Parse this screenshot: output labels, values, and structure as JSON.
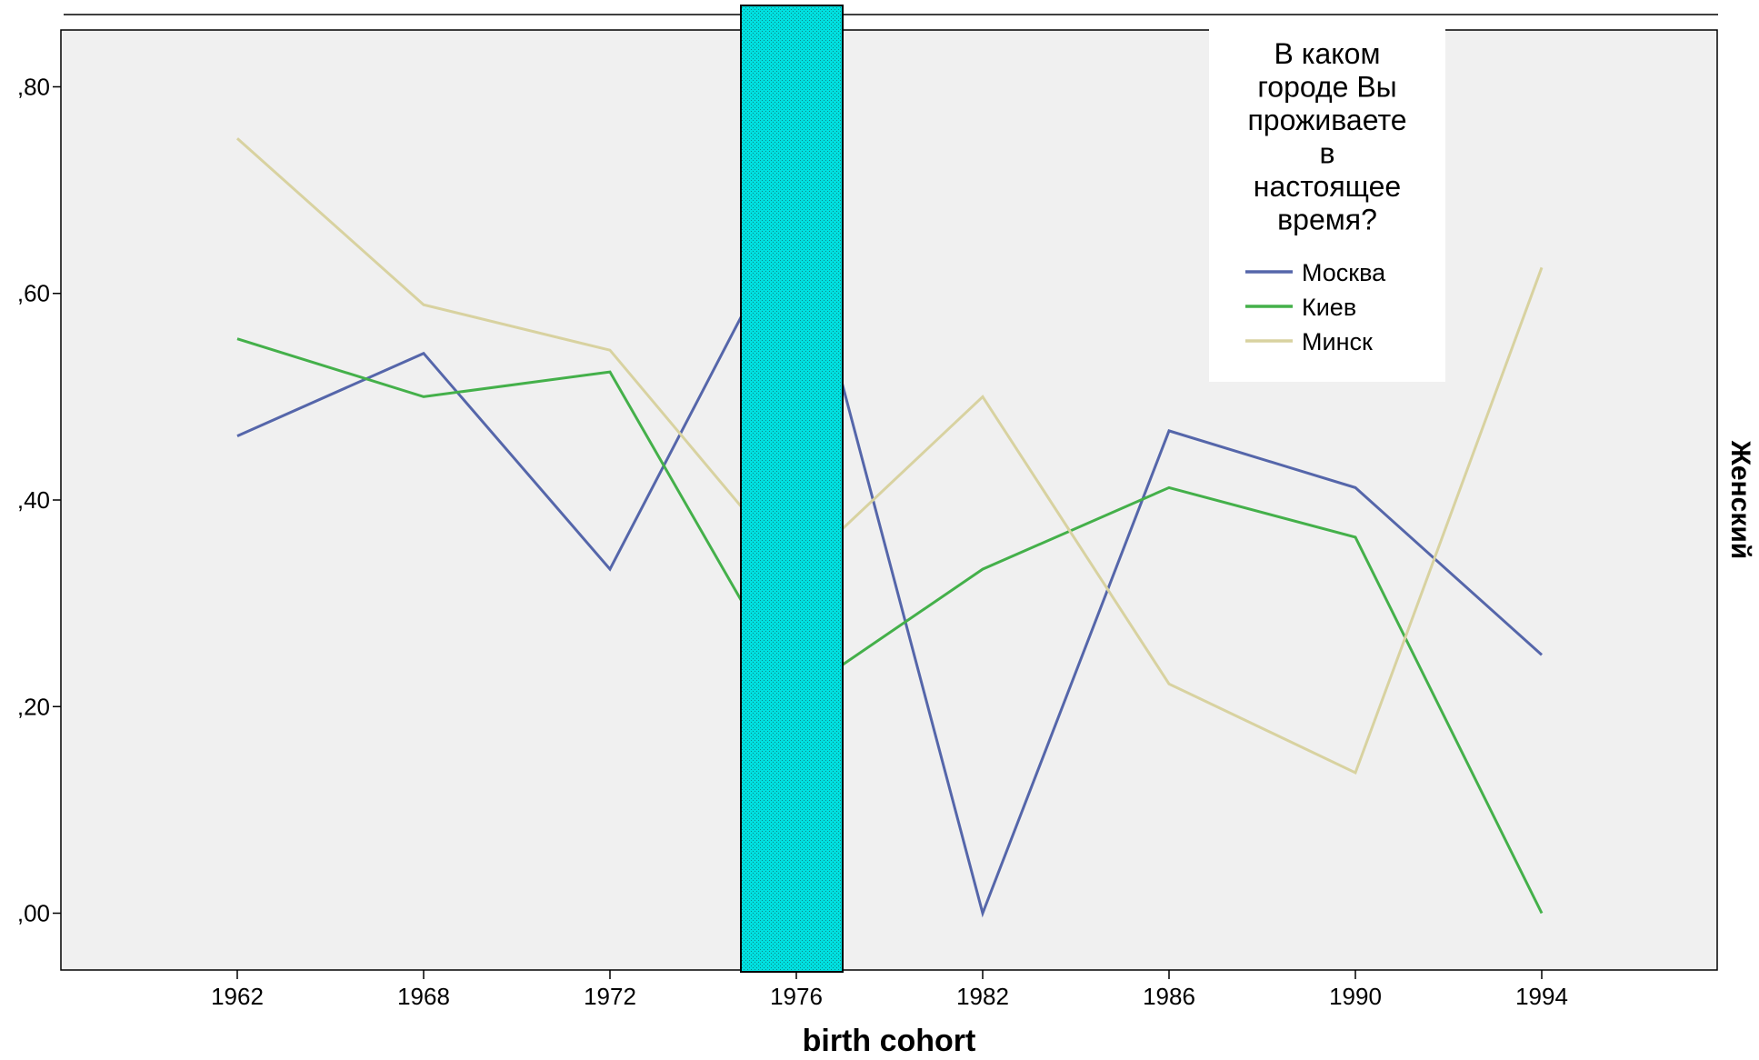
{
  "chart_data": {
    "type": "line",
    "xlabel": "birth cohort",
    "panel_label": "Женский",
    "categories": [
      "1962",
      "1968",
      "1972",
      "1976",
      "1982",
      "1986",
      "1990",
      "1994"
    ],
    "ylim": [
      -0.055,
      0.855
    ],
    "yticks": [
      ",00",
      ",20",
      ",40",
      ",60",
      ",80"
    ],
    "ytick_values": [
      0.0,
      0.2,
      0.4,
      0.6,
      0.8
    ],
    "grid": false,
    "legend": {
      "title_lines": [
        "В каком",
        "городе Вы",
        "проживаете",
        "в",
        "настоящее",
        "время?"
      ],
      "placement": "top-right"
    },
    "series": [
      {
        "name": "Москва",
        "color": "#5566aa",
        "values": [
          0.462,
          0.542,
          0.333,
          0.68,
          0.0,
          0.467,
          0.412,
          0.25
        ]
      },
      {
        "name": "Киев",
        "color": "#44b04a",
        "values": [
          0.556,
          0.5,
          0.524,
          0.21,
          0.333,
          0.412,
          0.364,
          0.0
        ]
      },
      {
        "name": "Минск",
        "color": "#d8d2a0",
        "values": [
          0.75,
          0.589,
          0.545,
          0.33,
          0.5,
          0.222,
          0.136,
          0.625
        ]
      }
    ],
    "occluding_bar": {
      "category": "1976",
      "color": "#00e5e5"
    }
  }
}
